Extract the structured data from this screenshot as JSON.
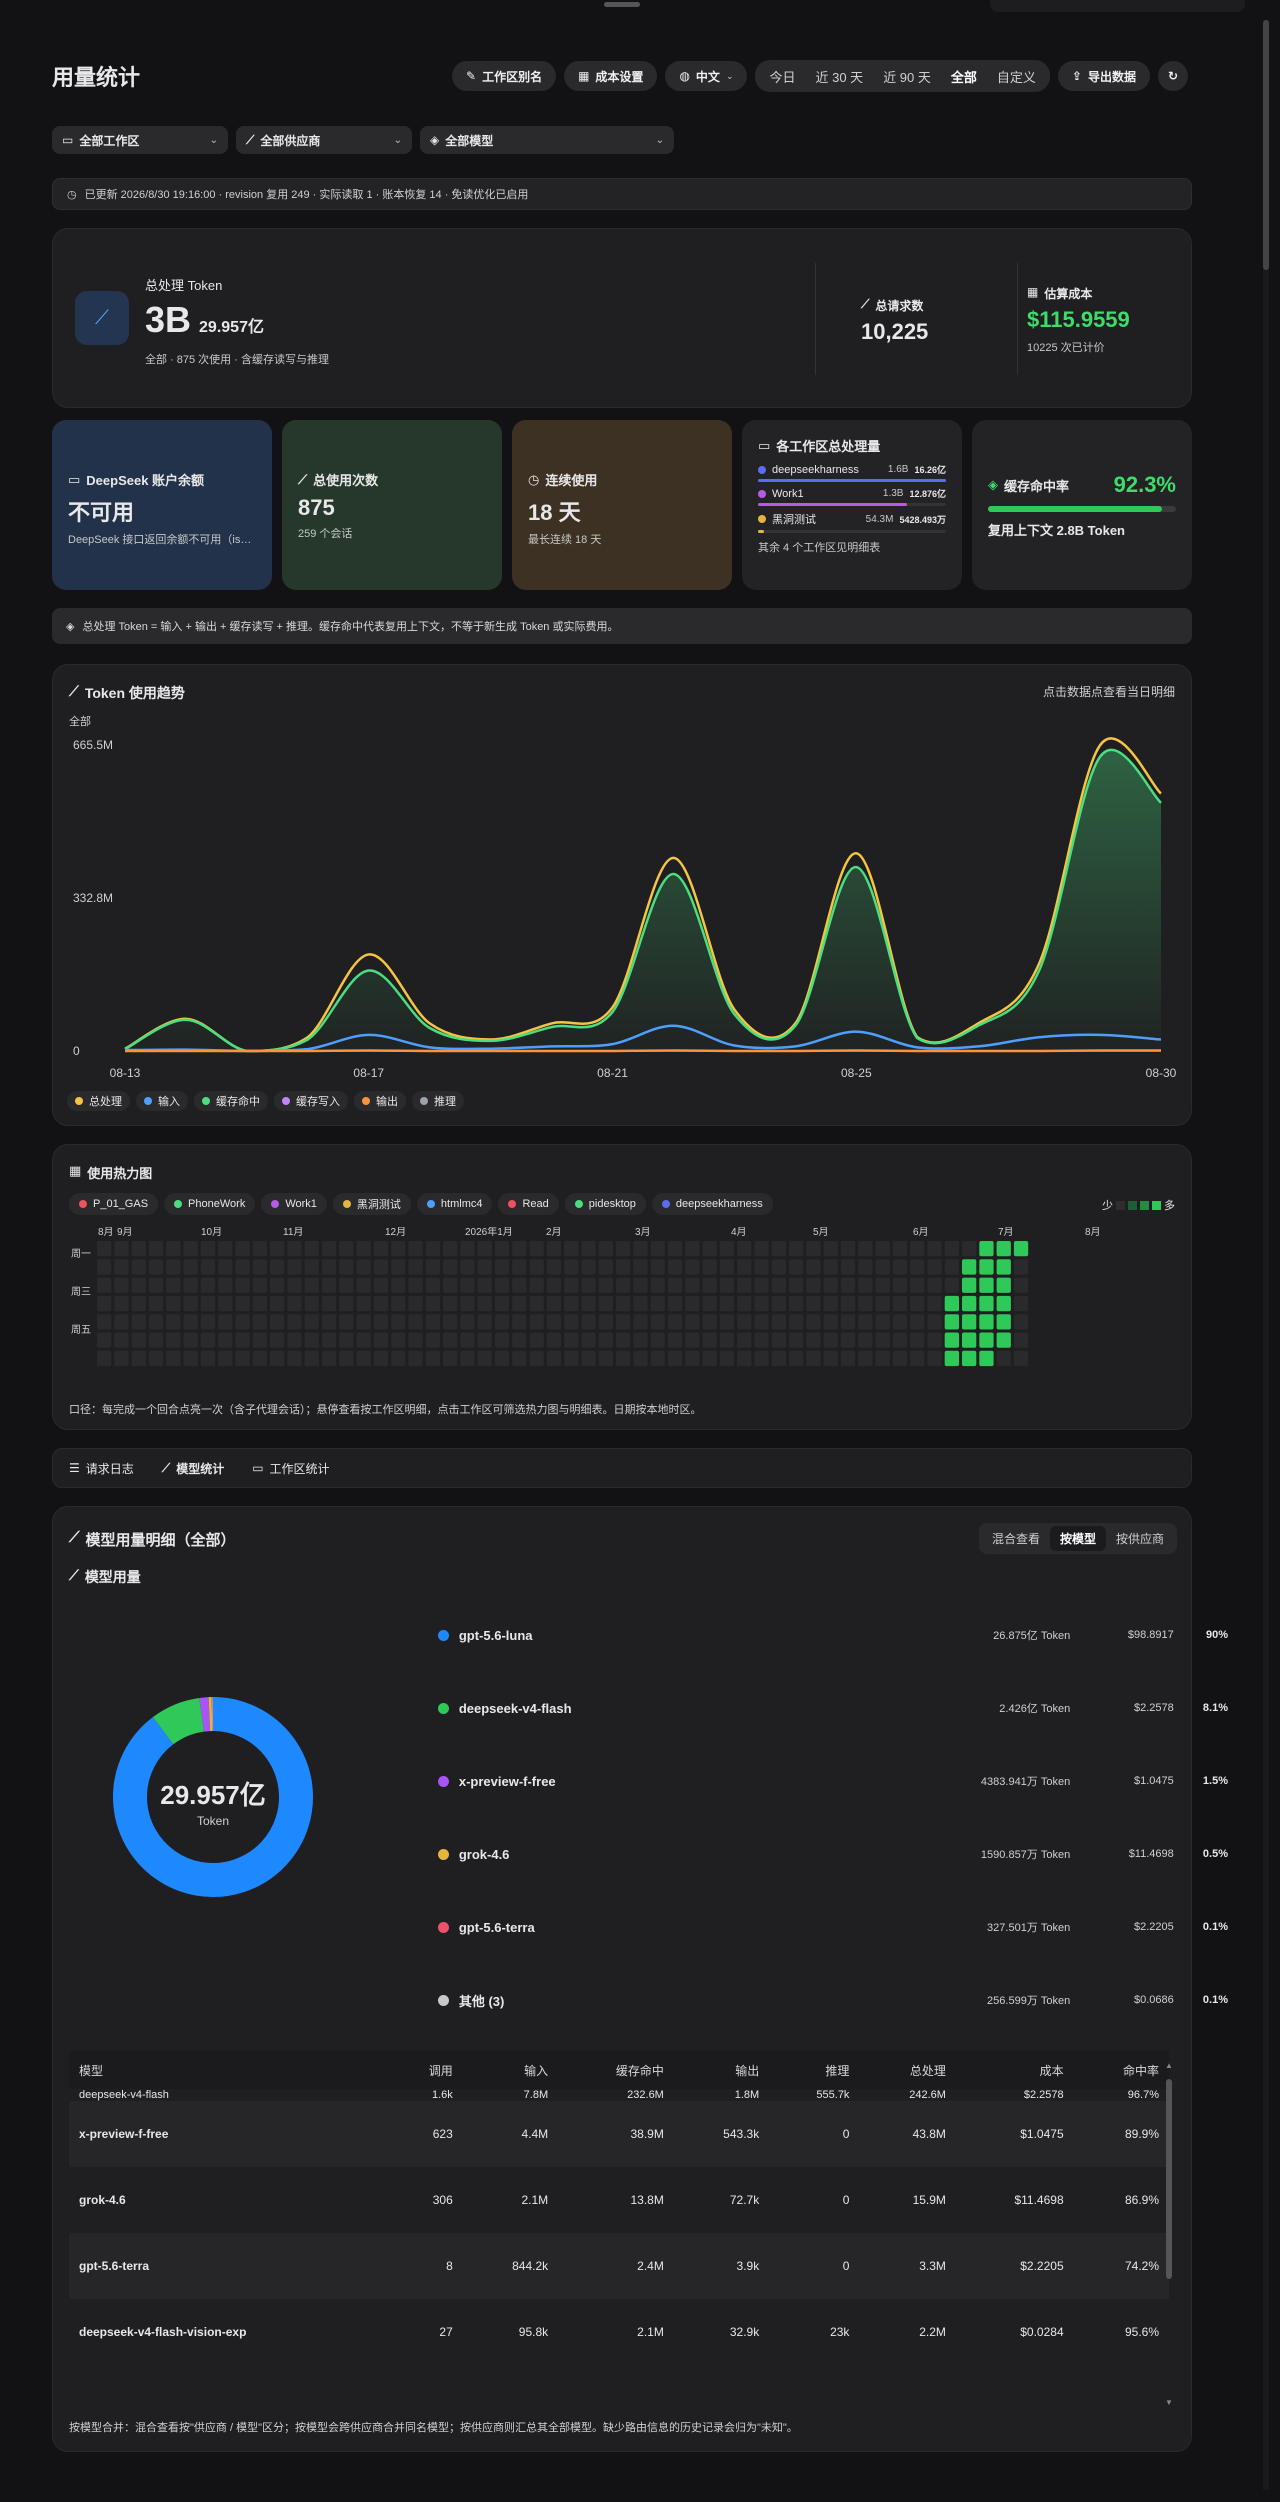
{
  "header": {
    "title": "用量统计",
    "alias_btn": "工作区别名",
    "cost_btn": "成本设置",
    "lang": "中文",
    "ranges": [
      "今日",
      "近 30 天",
      "近 90 天",
      "全部",
      "自定义"
    ],
    "active_range": "全部",
    "export_btn": "导出数据"
  },
  "filters": {
    "workspace": "全部工作区",
    "provider": "全部供应商",
    "model": "全部模型"
  },
  "status": "已更新 2026/8/30 19:16:00 · revision 复用 249 · 实际读取 1 · 账本恢复 14 · 免读优化已启用",
  "summary": {
    "label": "总处理 Token",
    "big": "3B",
    "approx": "29.957亿",
    "sub": "全部 · 875 次使用 · 含缓存读写与推理",
    "req_label": "总请求数",
    "req_value": "10,225",
    "cost_label": "估算成本",
    "cost_value": "$115.9559",
    "cost_sub": "10225 次已计价"
  },
  "tiles": {
    "balance": {
      "label": "DeepSeek 账户余额",
      "value": "不可用",
      "sub": "DeepSeek 接口返回余额不可用（is_a..."
    },
    "uses": {
      "label": "总使用次数",
      "value": "875",
      "sub": "259 个会话"
    },
    "streak": {
      "label": "连续使用",
      "value": "18 天",
      "sub": "最长连续 18 天"
    },
    "workspaces": {
      "label": "各工作区总处理量",
      "rows": [
        {
          "name": "deepseekharness",
          "v": "1.6B",
          "v2": "16.26亿",
          "color": "#5b6cf0",
          "frac": 1.0
        },
        {
          "name": "Work1",
          "v": "1.3B",
          "v2": "12.876亿",
          "color": "#b55be6",
          "frac": 0.79
        },
        {
          "name": "黑洞测试",
          "v": "54.3M",
          "v2": "5428.493万",
          "color": "#e3b53a",
          "frac": 0.03
        }
      ],
      "more": "其余 4 个工作区见明细表"
    },
    "cache": {
      "label": "缓存命中率",
      "pct": "92.3%",
      "sub": "复用上下文 2.8B Token",
      "frac": 0.923
    }
  },
  "note": "总处理 Token = 输入 + 输出 + 缓存读写 + 推理。缓存命中代表复用上下文，不等于新生成 Token 或实际费用。",
  "trend": {
    "title": "Token 使用趋势",
    "hint": "点击数据点查看当日明细",
    "scope": "全部",
    "legend": [
      {
        "n": "总处理",
        "c": "#f5c542"
      },
      {
        "n": "输入",
        "c": "#4d9fff"
      },
      {
        "n": "缓存命中",
        "c": "#4ade80"
      },
      {
        "n": "缓存写入",
        "c": "#c084fc"
      },
      {
        "n": "输出",
        "c": "#fb923c"
      },
      {
        "n": "推理",
        "c": "#9ca3af"
      }
    ]
  },
  "chart_data": {
    "type": "line",
    "x": [
      "08-13",
      "08-14",
      "08-15",
      "08-16",
      "08-17",
      "08-18",
      "08-19",
      "08-20",
      "08-21",
      "08-22",
      "08-23",
      "08-24",
      "08-25",
      "08-26",
      "08-27",
      "08-28",
      "08-29",
      "08-30"
    ],
    "x_ticks": [
      "08-13",
      "08-17",
      "08-21",
      "08-25",
      "08-30"
    ],
    "y_ticks": [
      "0",
      "332.8M",
      "665.5M"
    ],
    "ylim": [
      0,
      665.5
    ],
    "series": [
      {
        "name": "总处理",
        "color": "#f5c542",
        "values": [
          5,
          70,
          0,
          30,
          210,
          60,
          25,
          60,
          95,
          420,
          90,
          60,
          430,
          30,
          60,
          190,
          665,
          560
        ]
      },
      {
        "name": "缓存命中",
        "color": "#4ade80",
        "values": [
          4,
          68,
          0,
          25,
          175,
          50,
          22,
          52,
          85,
          385,
          80,
          55,
          400,
          28,
          55,
          175,
          640,
          540
        ]
      },
      {
        "name": "输入",
        "color": "#4d9fff",
        "values": [
          2,
          3,
          0,
          4,
          35,
          8,
          5,
          10,
          15,
          55,
          12,
          10,
          42,
          8,
          10,
          30,
          35,
          25
        ]
      },
      {
        "name": "输出",
        "color": "#fb923c",
        "values": [
          0,
          0,
          0,
          0,
          1,
          0,
          0,
          0,
          0,
          1,
          0,
          0,
          1,
          0,
          0,
          0,
          1,
          1
        ]
      }
    ]
  },
  "heatmap": {
    "title": "使用热力图",
    "workspaces": [
      {
        "n": "P_01_GAS",
        "c": "#f05060"
      },
      {
        "n": "PhoneWork",
        "c": "#4ade80"
      },
      {
        "n": "Work1",
        "c": "#b55be6"
      },
      {
        "n": "黑洞测试",
        "c": "#e3b53a"
      },
      {
        "n": "htmlmc4",
        "c": "#4d9fff"
      },
      {
        "n": "Read",
        "c": "#f05060"
      },
      {
        "n": "pidesktop",
        "c": "#4ade80"
      },
      {
        "n": "deepseekharness",
        "c": "#5b6cf0"
      }
    ],
    "less": "少",
    "more": "多",
    "months": [
      "8月",
      "9月",
      "10月",
      "11月",
      "12月",
      "2026年1月",
      "2月",
      "3月",
      "4月",
      "5月",
      "6月",
      "7月",
      "8月"
    ],
    "days": [
      "周一",
      "周三",
      "周五"
    ],
    "caption": "口径：每完成一个回合点亮一次（含子代理会话）；悬停查看按工作区明细，点击工作区可筛选热力图与明细表。日期按本地时区。"
  },
  "tabs": [
    "请求日志",
    "模型统计",
    "工作区统计"
  ],
  "models": {
    "title": "模型用量明细（全部）",
    "sub": "模型用量",
    "modes": [
      "混合查看",
      "按模型",
      "按供应商"
    ],
    "active_mode": "按模型",
    "donut_value": "29.957亿",
    "donut_unit": "Token",
    "rows": [
      {
        "name": "gpt-5.6-luna",
        "c": "#1e88ff",
        "tok": "26.875亿 Token",
        "cost": "$98.8917",
        "pct": "90%",
        "frac": 0.9
      },
      {
        "name": "deepseek-v4-flash",
        "c": "#2fc95a",
        "tok": "2.426亿 Token",
        "cost": "$2.2578",
        "pct": "8.1%",
        "frac": 0.081
      },
      {
        "name": "x-preview-f-free",
        "c": "#a855f7",
        "tok": "4383.941万 Token",
        "cost": "$1.0475",
        "pct": "1.5%",
        "frac": 0.015
      },
      {
        "name": "grok-4.6",
        "c": "#e3b53a",
        "tok": "1590.857万 Token",
        "cost": "$11.4698",
        "pct": "0.5%",
        "frac": 0.005
      },
      {
        "name": "gpt-5.6-terra",
        "c": "#f0506e",
        "tok": "327.501万 Token",
        "cost": "$2.2205",
        "pct": "0.1%",
        "frac": 0.001
      },
      {
        "name": "其他 (3)",
        "c": "#c8c8c8",
        "tok": "256.599万 Token",
        "cost": "$0.0686",
        "pct": "0.1%",
        "frac": 0.001
      }
    ]
  },
  "table": {
    "headers": [
      "模型",
      "调用",
      "输入",
      "缓存命中",
      "输出",
      "推理",
      "总处理",
      "成本",
      "命中率"
    ],
    "partial": [
      "deepseek-v4-flash",
      "1.6k",
      "7.8M",
      "232.6M",
      "1.8M",
      "555.7k",
      "242.6M",
      "$2.2578",
      "96.7%"
    ],
    "rows": [
      [
        "x-preview-f-free",
        "623",
        "4.4M",
        "38.9M",
        "543.3k",
        "0",
        "43.8M",
        "$1.0475",
        "89.9%"
      ],
      [
        "grok-4.6",
        "306",
        "2.1M",
        "13.8M",
        "72.7k",
        "0",
        "15.9M",
        "$11.4698",
        "86.9%"
      ],
      [
        "gpt-5.6-terra",
        "8",
        "844.2k",
        "2.4M",
        "3.9k",
        "0",
        "3.3M",
        "$2.2205",
        "74.2%"
      ],
      [
        "deepseek-v4-flash-vision-exp",
        "27",
        "95.8k",
        "2.1M",
        "32.9k",
        "23k",
        "2.2M",
        "$0.0284",
        "95.6%"
      ]
    ]
  },
  "footer_note": "按模型合并：混合查看按\"供应商 / 模型\"区分；按模型会跨供应商合并同名模型；按供应商则汇总其全部模型。缺少路由信息的历史记录会归为\"未知\"。"
}
